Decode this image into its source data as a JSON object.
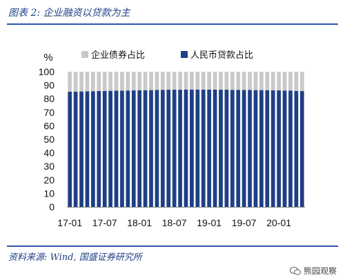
{
  "figure": {
    "title": "图表 2:   企业融资以贷款为主",
    "source": "资料来源:  Wind,  国盛证券研究所",
    "watermark": "熊园观察",
    "watermark_icon": "wechat-icon"
  },
  "colors": {
    "loan": "#1f3f86",
    "bond": "#c9c9c9",
    "rule": "#2a56b0"
  },
  "chart_data": {
    "type": "bar",
    "stacked": true,
    "unit_label": "%",
    "ylim": [
      0,
      100
    ],
    "yticks": [
      0,
      10,
      20,
      30,
      40,
      50,
      60,
      70,
      80,
      90,
      100
    ],
    "x_tick_labels": [
      "17-01",
      "17-07",
      "18-01",
      "18-07",
      "19-01",
      "19-07",
      "20-01"
    ],
    "categories": [
      "17-01",
      "17-02",
      "17-03",
      "17-04",
      "17-05",
      "17-06",
      "17-07",
      "17-08",
      "17-09",
      "17-10",
      "17-11",
      "17-12",
      "18-01",
      "18-02",
      "18-03",
      "18-04",
      "18-05",
      "18-06",
      "18-07",
      "18-08",
      "18-09",
      "18-10",
      "18-11",
      "18-12",
      "19-01",
      "19-02",
      "19-03",
      "19-04",
      "19-05",
      "19-06",
      "19-07",
      "19-08",
      "19-09",
      "19-10",
      "19-11",
      "19-12",
      "20-01",
      "20-02",
      "20-03",
      "20-04",
      "20-05"
    ],
    "legend_position": "top",
    "series": [
      {
        "name": "人民币贷款占比",
        "color": "#1f3f86",
        "values": [
          85.2,
          85.3,
          85.4,
          85.5,
          85.6,
          85.7,
          85.8,
          85.9,
          86.0,
          86.0,
          86.1,
          86.2,
          86.3,
          86.3,
          86.4,
          86.5,
          86.6,
          86.7,
          86.7,
          86.7,
          86.8,
          86.8,
          86.8,
          86.8,
          86.8,
          86.8,
          86.7,
          86.7,
          86.6,
          86.6,
          86.5,
          86.5,
          86.4,
          86.4,
          86.3,
          86.3,
          86.2,
          86.1,
          86.0,
          85.8,
          85.7
        ]
      },
      {
        "name": "企业债券占比",
        "color": "#c9c9c9",
        "values": [
          14.8,
          14.7,
          14.6,
          14.5,
          14.4,
          14.3,
          14.2,
          14.1,
          14.0,
          14.0,
          13.9,
          13.8,
          13.7,
          13.7,
          13.6,
          13.5,
          13.4,
          13.3,
          13.3,
          13.3,
          13.2,
          13.2,
          13.2,
          13.2,
          13.2,
          13.2,
          13.3,
          13.3,
          13.4,
          13.4,
          13.5,
          13.5,
          13.6,
          13.6,
          13.7,
          13.7,
          13.8,
          13.9,
          14.0,
          14.2,
          14.3
        ]
      }
    ],
    "legend_order": [
      "企业债券占比",
      "人民币贷款占比"
    ]
  }
}
